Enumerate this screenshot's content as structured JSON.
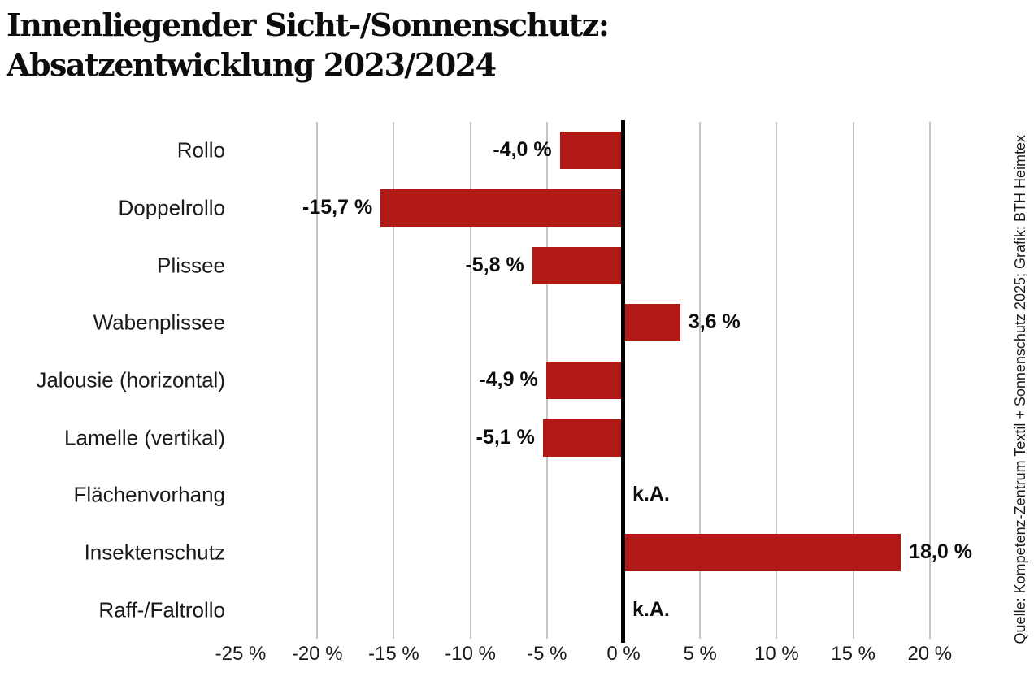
{
  "title": {
    "line1": "Innenliegender Sicht-/Sonnenschutz:",
    "line2": "Absatzentwicklung 2023/2024"
  },
  "source_note": "Quelle: Kompetenz-Zentrum Textil + Sonnenschutz 2025; Grafik: BTH Heimtex",
  "chart_data": {
    "type": "bar",
    "orientation": "horizontal",
    "title": "Innenliegender Sicht-/Sonnenschutz: Absatzentwicklung 2023/2024",
    "categories": [
      "Rollo",
      "Doppelrollo",
      "Plissee",
      "Wabenplissee",
      "Jalousie (horizontal)",
      "Lamelle (vertikal)",
      "Flächenvorhang",
      "Insektenschutz",
      "Raff-/Faltrollo"
    ],
    "values": [
      -4.0,
      -15.7,
      -5.8,
      3.6,
      -4.9,
      -5.1,
      null,
      18.0,
      null
    ],
    "value_labels": [
      "-4,0 %",
      "-15,7 %",
      "-5,8 %",
      "3,6 %",
      "-4,9 %",
      "-5,1 %",
      "k.A.",
      "18,0 %",
      "k.A."
    ],
    "no_data_label": "k.A.",
    "x_tick_values": [
      -25,
      -20,
      -15,
      -10,
      -5,
      0,
      5,
      10,
      15,
      20
    ],
    "x_tick_labels": [
      "-25 %",
      "-20 %",
      "-15 %",
      "-10 %",
      "-5 %",
      "0 %",
      "5 %",
      "10 %",
      "15 %",
      "20 %"
    ],
    "gridline_values": [
      -20,
      -15,
      -10,
      -5,
      5,
      10,
      15,
      20
    ],
    "xlim": [
      -25,
      22.3
    ],
    "grid": true,
    "legend": false,
    "bar_color": "#B11917",
    "zero_line_color": "#000000",
    "grid_color": "#c6c6c6"
  }
}
